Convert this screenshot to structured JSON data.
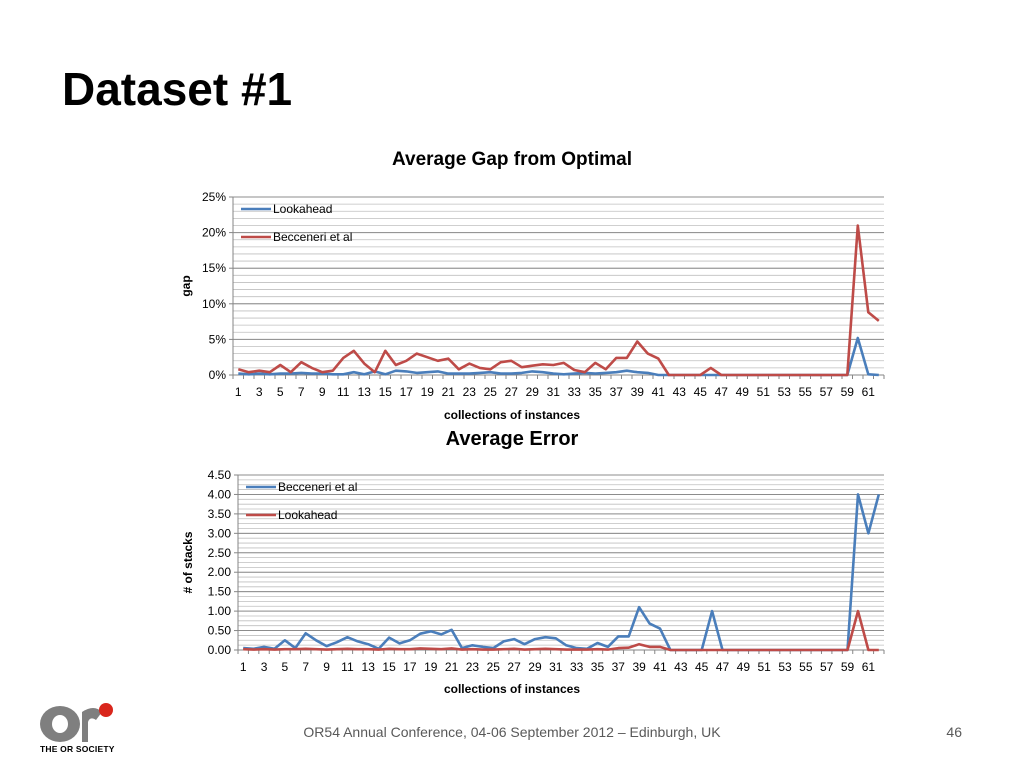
{
  "slide": {
    "title": "Dataset #1",
    "footer": "OR54 Annual Conference, 04-06 September 2012 – Edinburgh, UK",
    "page_number": "46",
    "logo_text": "THE OR SOCIETY",
    "colors": {
      "blue": "#4A7EBB",
      "red": "#BE4B48",
      "grid": "#BFBFBF",
      "axis": "#868686"
    }
  },
  "chart_data": [
    {
      "type": "line",
      "title": "Average Gap from Optimal",
      "xlabel": "collections of instances",
      "ylabel": "gap",
      "ylim": [
        0,
        0.25
      ],
      "ytick_labels": [
        "0%",
        "5%",
        "10%",
        "15%",
        "20%",
        "25%"
      ],
      "xtick_labels": [
        "1",
        "3",
        "5",
        "7",
        "9",
        "11",
        "13",
        "15",
        "17",
        "19",
        "21",
        "23",
        "25",
        "27",
        "29",
        "31",
        "33",
        "35",
        "37",
        "39",
        "41",
        "43",
        "45",
        "47",
        "49",
        "51",
        "53",
        "55",
        "57",
        "59",
        "61"
      ],
      "legend_position": "top-left",
      "series": [
        {
          "name": "Lookahead",
          "color": "#4A7EBB",
          "values": [
            0.002,
            0.001,
            0.002,
            0.001,
            0.002,
            0.002,
            0.003,
            0.002,
            0.002,
            0.001,
            0.001,
            0.004,
            0.001,
            0.005,
            0.001,
            0.006,
            0.005,
            0.003,
            0.004,
            0.005,
            0.002,
            0.002,
            0.002,
            0.003,
            0.004,
            0.002,
            0.002,
            0.003,
            0.005,
            0.004,
            0.002,
            0.001,
            0.002,
            0.003,
            0.002,
            0.003,
            0.004,
            0.006,
            0.004,
            0.003,
            0,
            0,
            0,
            0,
            0,
            0,
            0,
            0,
            0,
            0,
            0,
            0,
            0,
            0,
            0,
            0,
            0,
            0,
            0,
            0.052,
            0.001,
            0
          ]
        },
        {
          "name": "Becceneri et al",
          "color": "#BE4B48",
          "values": [
            0.008,
            0.004,
            0.006,
            0.004,
            0.014,
            0.004,
            0.018,
            0.01,
            0.004,
            0.006,
            0.024,
            0.034,
            0.016,
            0.004,
            0.034,
            0.014,
            0.02,
            0.03,
            0.025,
            0.02,
            0.023,
            0.008,
            0.016,
            0.01,
            0.008,
            0.018,
            0.02,
            0.011,
            0.013,
            0.015,
            0.014,
            0.017,
            0.007,
            0.004,
            0.017,
            0.008,
            0.024,
            0.024,
            0.047,
            0.03,
            0.023,
            0,
            0,
            0,
            0,
            0.01,
            0,
            0,
            0,
            0,
            0,
            0,
            0,
            0,
            0,
            0,
            0,
            0,
            0,
            0.21,
            0.088,
            0.076
          ]
        }
      ]
    },
    {
      "type": "line",
      "title": "Average Error",
      "xlabel": "collections of instances",
      "ylabel": "# of stacks",
      "ylim": [
        0,
        4.5
      ],
      "ytick_labels": [
        "0.00",
        "0.50",
        "1.00",
        "1.50",
        "2.00",
        "2.50",
        "3.00",
        "3.50",
        "4.00",
        "4.50"
      ],
      "xtick_labels": [
        "1",
        "3",
        "5",
        "7",
        "9",
        "11",
        "13",
        "15",
        "17",
        "19",
        "21",
        "23",
        "25",
        "27",
        "29",
        "31",
        "33",
        "35",
        "37",
        "39",
        "41",
        "43",
        "45",
        "47",
        "49",
        "51",
        "53",
        "55",
        "57",
        "59",
        "61"
      ],
      "legend_position": "top-left",
      "series": [
        {
          "name": "Becceneri et al",
          "color": "#4A7EBB",
          "values": [
            0.05,
            0.03,
            0.08,
            0.03,
            0.25,
            0.05,
            0.43,
            0.25,
            0.1,
            0.2,
            0.33,
            0.22,
            0.15,
            0.03,
            0.32,
            0.17,
            0.25,
            0.42,
            0.48,
            0.4,
            0.52,
            0.05,
            0.12,
            0.08,
            0.05,
            0.22,
            0.28,
            0.15,
            0.28,
            0.33,
            0.3,
            0.12,
            0.05,
            0.03,
            0.18,
            0.08,
            0.35,
            0.35,
            1.1,
            0.68,
            0.55,
            0,
            0,
            0,
            0,
            1.0,
            0,
            0,
            0,
            0,
            0,
            0,
            0,
            0,
            0,
            0,
            0,
            0,
            0,
            4.0,
            3.0,
            4.0
          ]
        },
        {
          "name": "Lookahead",
          "color": "#BE4B48",
          "values": [
            0.02,
            0.01,
            0.02,
            0.01,
            0.02,
            0.02,
            0.03,
            0.02,
            0.01,
            0.02,
            0.03,
            0.02,
            0.02,
            0.01,
            0.03,
            0.02,
            0.02,
            0.04,
            0.03,
            0.02,
            0.04,
            0.01,
            0.02,
            0.01,
            0.01,
            0.02,
            0.03,
            0.01,
            0.02,
            0.03,
            0.02,
            0.01,
            0.01,
            0.01,
            0.02,
            0.01,
            0.05,
            0.06,
            0.15,
            0.08,
            0.08,
            0,
            0,
            0,
            0,
            0,
            0,
            0,
            0,
            0,
            0,
            0,
            0,
            0,
            0,
            0,
            0,
            0,
            0,
            1.0,
            0,
            0
          ]
        }
      ]
    }
  ]
}
